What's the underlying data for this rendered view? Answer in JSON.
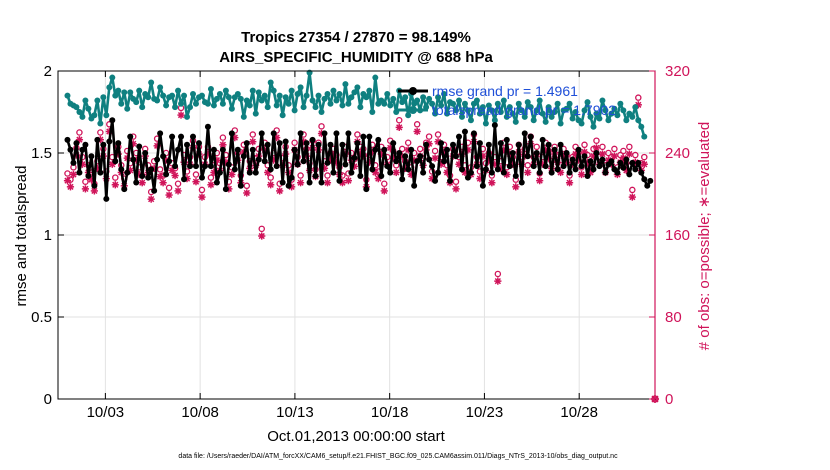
{
  "chart_data": {
    "type": "line",
    "title_line1": "Tropics 27354 / 27870 = 98.149%",
    "title_line2": "AIRS_SPECIFIC_HUMIDITY @ 688 hPa",
    "xlabel": "Oct.01,2013 00:00:00 start",
    "ylabel_left": "rmse and totalspread",
    "ylabel_right": "# of obs: o=possible; ∗=evaluated",
    "footnote": "data file: /Users/raeder/DAI/ATM_forcXX/CAM6_setup/f.e21.FHIST_BGC.f09_025.CAM6assim.011/Diags_NTrS_2013-10/obs_diag_output.nc",
    "x_range": [
      0.5,
      32.0
    ],
    "xtick_values": [
      3,
      8,
      13,
      18,
      23,
      28
    ],
    "xtick_labels": [
      "10/03",
      "10/08",
      "10/13",
      "10/18",
      "10/23",
      "10/28"
    ],
    "ylim_left": [
      0,
      2
    ],
    "yticks_left": [
      "0",
      "0.5",
      "1",
      "1.5",
      "2"
    ],
    "ylim_right": [
      0,
      320
    ],
    "yticks_right": [
      "0",
      "80",
      "160",
      "240",
      "320"
    ],
    "legend": [
      "rmse grand pr = 1.4961",
      "totalspread grand pr = 1.7902"
    ],
    "colors": {
      "rmse": "#000000",
      "spread": "#0f8080",
      "obs": "#d0145a",
      "grid": "#e2e2e2",
      "legend_text": "#1f4fd8"
    },
    "series": [
      {
        "name": "rmse",
        "values": [
          1.58,
          1.52,
          1.44,
          1.56,
          1.38,
          1.52,
          1.55,
          1.36,
          1.48,
          1.3,
          1.58,
          1.38,
          1.55,
          1.22,
          1.57,
          1.7,
          1.45,
          1.56,
          1.4,
          1.28,
          1.38,
          1.6,
          1.46,
          1.32,
          1.54,
          1.36,
          1.5,
          1.35,
          1.4,
          1.27,
          1.46,
          1.62,
          1.48,
          1.37,
          1.45,
          1.6,
          1.42,
          1.52,
          1.6,
          1.34,
          1.55,
          1.42,
          1.6,
          1.42,
          1.56,
          1.35,
          1.42,
          1.66,
          1.42,
          1.52,
          1.32,
          1.38,
          1.52,
          1.28,
          1.43,
          1.62,
          1.4,
          1.52,
          1.3,
          1.48,
          1.56,
          1.38,
          1.52,
          1.38,
          1.46,
          1.62,
          1.45,
          1.55,
          1.4,
          1.62,
          1.42,
          1.56,
          1.32,
          1.57,
          1.3,
          1.35,
          1.52,
          1.43,
          1.62,
          1.45,
          1.56,
          1.32,
          1.58,
          1.36,
          1.55,
          1.32,
          1.62,
          1.44,
          1.55,
          1.38,
          1.62,
          1.33,
          1.55,
          1.43,
          1.62,
          1.38,
          1.47,
          1.56,
          1.36,
          1.6,
          1.28,
          1.6,
          1.4,
          1.52,
          1.58,
          1.36,
          1.52,
          1.42,
          1.38,
          1.56,
          1.45,
          1.5,
          1.34,
          1.48,
          1.4,
          1.52,
          1.3,
          1.45,
          1.48,
          1.38,
          1.55,
          1.46,
          1.42,
          1.33,
          1.38,
          1.56,
          1.45,
          1.52,
          1.33,
          1.55,
          1.48,
          1.6,
          1.4,
          1.63,
          1.35,
          1.38,
          1.62,
          1.42,
          1.56,
          1.3,
          1.4,
          1.55,
          1.38,
          1.67,
          1.4,
          1.56,
          1.38,
          1.58,
          1.42,
          1.5,
          1.36,
          1.55,
          1.32,
          1.62,
          1.48,
          1.6,
          1.42,
          1.5,
          1.38,
          1.58,
          1.42,
          1.55,
          1.38,
          1.52,
          1.4,
          1.55,
          1.42,
          1.5,
          1.38,
          1.46,
          1.4,
          1.52,
          1.42,
          1.48,
          1.36,
          1.45,
          1.4,
          1.5,
          1.42,
          1.46,
          1.38,
          1.43,
          1.45,
          1.4,
          1.38,
          1.44,
          1.41,
          1.46,
          1.37,
          1.44,
          1.4,
          1.44,
          1.38,
          1.34,
          1.3,
          1.33
        ]
      },
      {
        "name": "totalspread",
        "values": [
          1.85,
          1.8,
          1.79,
          1.78,
          1.75,
          1.72,
          1.82,
          1.77,
          1.71,
          1.73,
          1.82,
          1.68,
          1.84,
          1.73,
          1.9,
          1.96,
          1.85,
          1.88,
          1.8,
          1.87,
          1.77,
          1.87,
          1.83,
          1.81,
          1.88,
          1.78,
          1.86,
          1.84,
          1.93,
          1.83,
          1.82,
          1.9,
          1.85,
          1.79,
          1.84,
          1.85,
          1.78,
          1.88,
          1.8,
          1.85,
          1.72,
          1.78,
          1.86,
          1.8,
          1.84,
          1.85,
          1.81,
          1.8,
          1.89,
          1.79,
          1.83,
          1.86,
          1.8,
          1.88,
          1.84,
          1.77,
          1.84,
          1.86,
          1.83,
          1.72,
          1.82,
          1.79,
          1.88,
          1.74,
          1.87,
          1.82,
          1.85,
          1.78,
          1.93,
          1.88,
          1.79,
          1.85,
          1.73,
          1.84,
          1.8,
          1.88,
          1.76,
          1.86,
          1.9,
          1.78,
          1.85,
          1.99,
          1.82,
          1.78,
          1.85,
          1.75,
          1.83,
          1.86,
          1.8,
          1.88,
          1.82,
          1.86,
          1.79,
          1.92,
          1.8,
          1.84,
          1.87,
          1.9,
          1.78,
          1.86,
          1.84,
          1.88,
          1.75,
          1.96,
          1.8,
          1.82,
          1.8,
          1.86,
          1.79,
          1.83,
          1.75,
          1.88,
          1.81,
          1.84,
          1.73,
          1.86,
          1.8,
          1.82,
          1.76,
          1.84,
          1.78,
          1.83,
          1.8,
          1.74,
          1.84,
          1.79,
          1.86,
          1.74,
          1.81,
          1.8,
          1.76,
          1.82,
          1.72,
          1.8,
          1.76,
          1.7,
          1.8,
          1.82,
          1.74,
          1.78,
          1.68,
          1.79,
          1.76,
          1.7,
          1.8,
          1.75,
          1.82,
          1.72,
          1.78,
          1.74,
          1.69,
          1.8,
          1.76,
          1.72,
          1.81,
          1.78,
          1.7,
          1.76,
          1.82,
          1.74,
          1.69,
          1.78,
          1.72,
          1.75,
          1.8,
          1.68,
          1.76,
          1.77,
          1.8,
          1.71,
          1.75,
          1.7,
          1.68,
          1.76,
          1.81,
          1.72,
          1.66,
          1.74,
          1.71,
          1.82,
          1.76,
          1.7,
          1.74,
          1.77,
          1.73,
          1.8,
          1.76,
          1.7,
          1.74,
          1.72,
          1.78,
          1.7,
          1.66,
          1.6
        ]
      },
      {
        "name": "obs_possible",
        "values": [
          220,
          214,
          226,
          245,
          260,
          236,
          212,
          228,
          221,
          210,
          232,
          260,
          244,
          222,
          268,
          236,
          216,
          246,
          228,
          215,
          242,
          230,
          256,
          240,
          226,
          218,
          244,
          228,
          202,
          232,
          254,
          224,
          218,
          240,
          206,
          230,
          225,
          210,
          284,
          238,
          222,
          236,
          252,
          219,
          246,
          204,
          236,
          246,
          216,
          228,
          240,
          230,
          255,
          238,
          212,
          226,
          262,
          240,
          218,
          248,
          208,
          232,
          258,
          235,
          244,
          166,
          250,
          228,
          216,
          240,
          262,
          210,
          235,
          246,
          228,
          214,
          250,
          236,
          218,
          258,
          244,
          230,
          252,
          224,
          250,
          266,
          232,
          218,
          240,
          244,
          238,
          226,
          218,
          246,
          220,
          240,
          234,
          258,
          246,
          244,
          214,
          238,
          248,
          228,
          222,
          246,
          210,
          236,
          252,
          242,
          228,
          272,
          244,
          232,
          250,
          226,
          240,
          268,
          244,
          235,
          250,
          256,
          222,
          242,
          258,
          236,
          248,
          228,
          218,
          244,
          212,
          236,
          246,
          228,
          250,
          226,
          258,
          236,
          222,
          244,
          230,
          240,
          218,
          236,
          122,
          232,
          250,
          226,
          246,
          236,
          214,
          248,
          236,
          244,
          228,
          256,
          236,
          246,
          220,
          236,
          250,
          242,
          232,
          246,
          238,
          228,
          244,
          238,
          218,
          236,
          246,
          240,
          226,
          248,
          238,
          228,
          244,
          252,
          236,
          246,
          228,
          240,
          236,
          244,
          226,
          238,
          242,
          230,
          246,
          204,
          238,
          294,
          230,
          236
        ]
      },
      {
        "name": "obs_evaluated",
        "values": [
          213,
          207,
          219,
          238,
          253,
          229,
          205,
          221,
          214,
          203,
          225,
          253,
          237,
          215,
          261,
          229,
          209,
          239,
          221,
          208,
          235,
          223,
          249,
          233,
          219,
          211,
          237,
          221,
          195,
          225,
          247,
          217,
          211,
          233,
          199,
          223,
          218,
          203,
          277,
          231,
          215,
          229,
          245,
          212,
          239,
          197,
          229,
          239,
          209,
          221,
          233,
          223,
          248,
          231,
          205,
          219,
          255,
          233,
          211,
          241,
          201,
          225,
          251,
          228,
          237,
          159,
          243,
          221,
          209,
          233,
          255,
          203,
          228,
          239,
          221,
          207,
          243,
          229,
          211,
          251,
          237,
          223,
          245,
          217,
          243,
          259,
          225,
          211,
          233,
          237,
          231,
          219,
          211,
          239,
          213,
          233,
          227,
          251,
          239,
          237,
          207,
          231,
          241,
          221,
          215,
          239,
          203,
          229,
          245,
          235,
          221,
          265,
          237,
          225,
          243,
          219,
          233,
          261,
          237,
          228,
          243,
          249,
          215,
          235,
          251,
          229,
          241,
          221,
          211,
          237,
          205,
          229,
          239,
          221,
          243,
          219,
          251,
          229,
          215,
          237,
          223,
          233,
          211,
          229,
          115,
          225,
          243,
          219,
          239,
          229,
          207,
          241,
          229,
          237,
          221,
          249,
          229,
          239,
          213,
          229,
          243,
          235,
          225,
          239,
          231,
          221,
          237,
          231,
          211,
          229,
          239,
          233,
          219,
          241,
          231,
          221,
          237,
          245,
          229,
          239,
          221,
          233,
          229,
          237,
          219,
          231,
          235,
          223,
          239,
          197,
          231,
          287,
          223,
          229
        ]
      }
    ]
  }
}
